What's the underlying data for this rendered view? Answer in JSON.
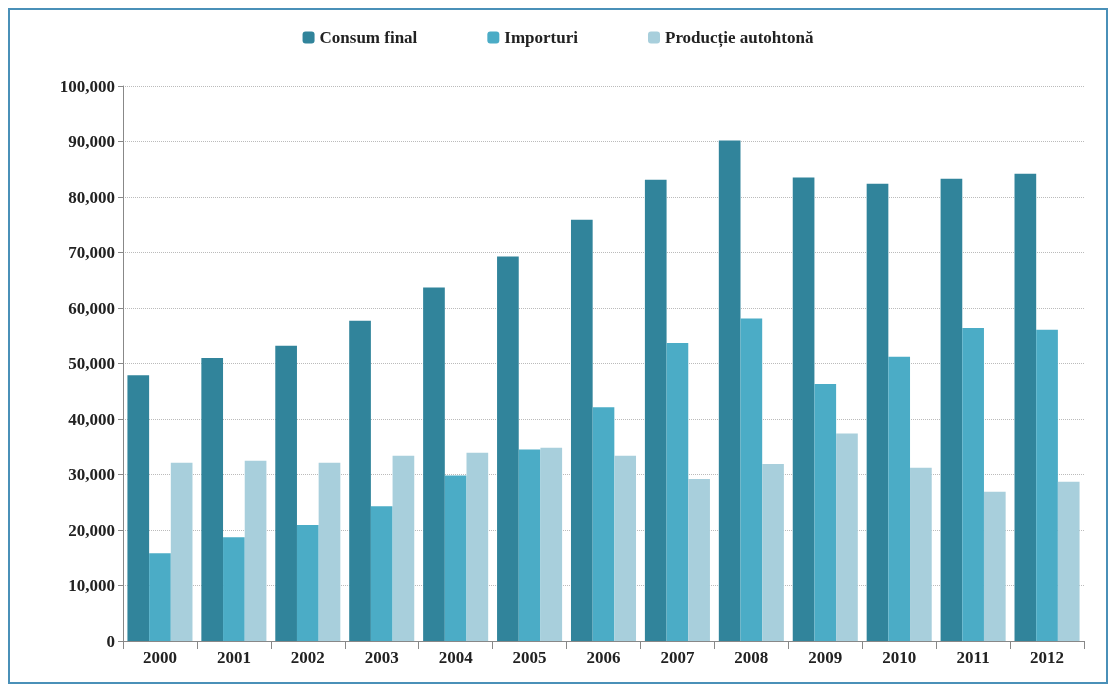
{
  "chart_data": {
    "type": "bar",
    "categories": [
      "2000",
      "2001",
      "2002",
      "2003",
      "2004",
      "2005",
      "2006",
      "2007",
      "2008",
      "2009",
      "2010",
      "2011",
      "2012"
    ],
    "series": [
      {
        "name": "Consum final",
        "color": "#31849b",
        "values": [
          47900,
          51000,
          53200,
          57700,
          63700,
          69300,
          75900,
          83100,
          90200,
          83500,
          82400,
          83300,
          84200
        ]
      },
      {
        "name": "Importuri",
        "color": "#4bacc6",
        "values": [
          15800,
          18700,
          20900,
          24300,
          29800,
          34500,
          42100,
          53700,
          58100,
          46300,
          51200,
          56400,
          56100
        ]
      },
      {
        "name": "Producție autohtonă",
        "color": "#a8cfdc",
        "values": [
          32100,
          32500,
          32100,
          33400,
          33900,
          34800,
          33400,
          29200,
          31900,
          37400,
          31200,
          26900,
          28700
        ]
      }
    ],
    "ylim": [
      0,
      100000
    ],
    "yticks": [
      0,
      {
        "value": 10000,
        "label": "10,000"
      },
      {
        "value": 20000,
        "label": "20,000"
      },
      {
        "value": 30000,
        "label": "30,000"
      },
      {
        "value": 40000,
        "label": "40,000"
      },
      {
        "value": 50000,
        "label": "50,000"
      },
      {
        "value": 60000,
        "label": "60,000"
      },
      {
        "value": 70000,
        "label": "70,000"
      },
      {
        "value": 80000,
        "label": "80,000"
      },
      {
        "value": 90000,
        "label": "90,000"
      },
      {
        "value": 100000,
        "label": "100,000"
      }
    ],
    "grid": "y",
    "legend": "top"
  }
}
